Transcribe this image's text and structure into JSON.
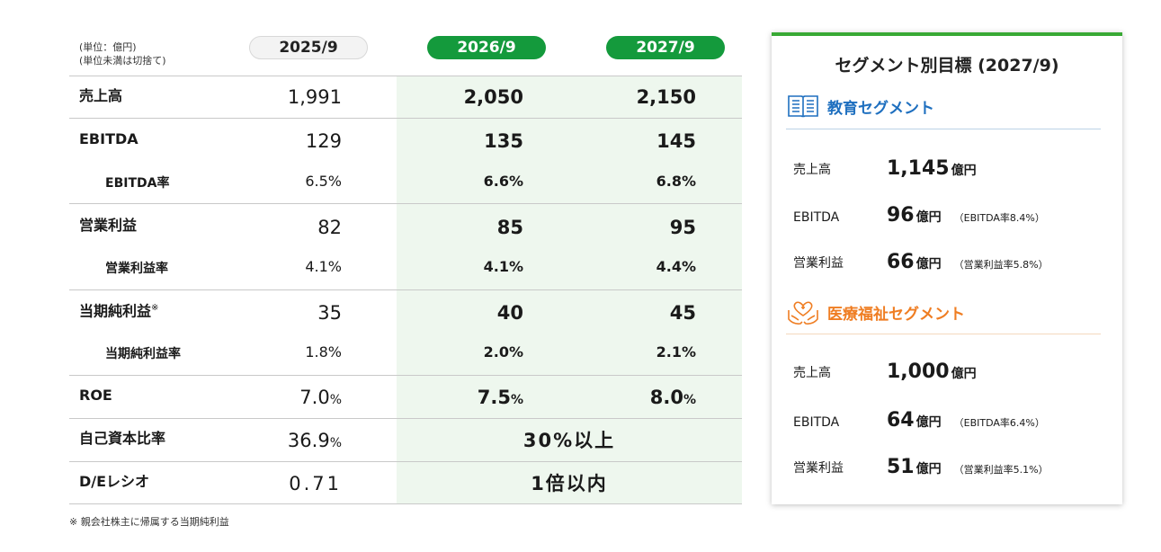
{
  "table": {
    "unit_line1": "(単位：億円)",
    "unit_line2": "(単位未満は切捨て)",
    "columns": [
      "2025/9",
      "2026/9",
      "2027/9"
    ],
    "rows": {
      "sales": {
        "label": "売上高",
        "v": [
          "1,991",
          "2,050",
          "2,150"
        ]
      },
      "ebitda": {
        "label": "EBITDA",
        "v": [
          "129",
          "135",
          "145"
        ]
      },
      "ebitda_rate": {
        "label": "EBITDA率",
        "v": [
          "6.5%",
          "6.6%",
          "6.8%"
        ]
      },
      "op": {
        "label": "営業利益",
        "v": [
          "82",
          "85",
          "95"
        ]
      },
      "op_rate": {
        "label": "営業利益率",
        "v": [
          "4.1%",
          "4.1%",
          "4.4%"
        ]
      },
      "net": {
        "label": "当期純利益",
        "mark": "※",
        "v": [
          "35",
          "40",
          "45"
        ]
      },
      "net_rate": {
        "label": "当期純利益率",
        "v": [
          "1.8%",
          "2.0%",
          "2.1%"
        ]
      },
      "roe": {
        "label": "ROE",
        "v": [
          "7.0",
          "7.5",
          "8.0"
        ],
        "suffix": "%"
      },
      "equity": {
        "label": "自己資本比率",
        "v0": "36.9",
        "suffix": "%",
        "merged": "30%以上"
      },
      "de": {
        "label": "D/Eレシオ",
        "v0": "0.71",
        "merged": "1倍以内"
      }
    },
    "footnote": "※ 親会社株主に帰属する当期純利益"
  },
  "card": {
    "title": "セグメント別目標 (2027/9)",
    "unit": "億円",
    "segments": [
      {
        "name": "教育セグメント",
        "icon": "book-icon",
        "color": "#1e6fbf",
        "rows": [
          {
            "label": "売上高",
            "value": "1,145",
            "note": ""
          },
          {
            "label": "EBITDA",
            "value": "96",
            "note": "（EBITDA率8.4%）"
          },
          {
            "label": "営業利益",
            "value": "66",
            "note": "（営業利益率5.8%）"
          }
        ]
      },
      {
        "name": "医療福祉セグメント",
        "icon": "care-hands-icon",
        "color": "#ef7d22",
        "rows": [
          {
            "label": "売上高",
            "value": "1,000",
            "note": ""
          },
          {
            "label": "EBITDA",
            "value": "64",
            "note": "（EBITDA率6.4%）"
          },
          {
            "label": "営業利益",
            "value": "51",
            "note": "（営業利益率5.1%）"
          }
        ]
      }
    ]
  },
  "colors": {
    "plan_green": "#149a3c",
    "band_green": "#eef7ee",
    "card_accent": "#39a935"
  }
}
